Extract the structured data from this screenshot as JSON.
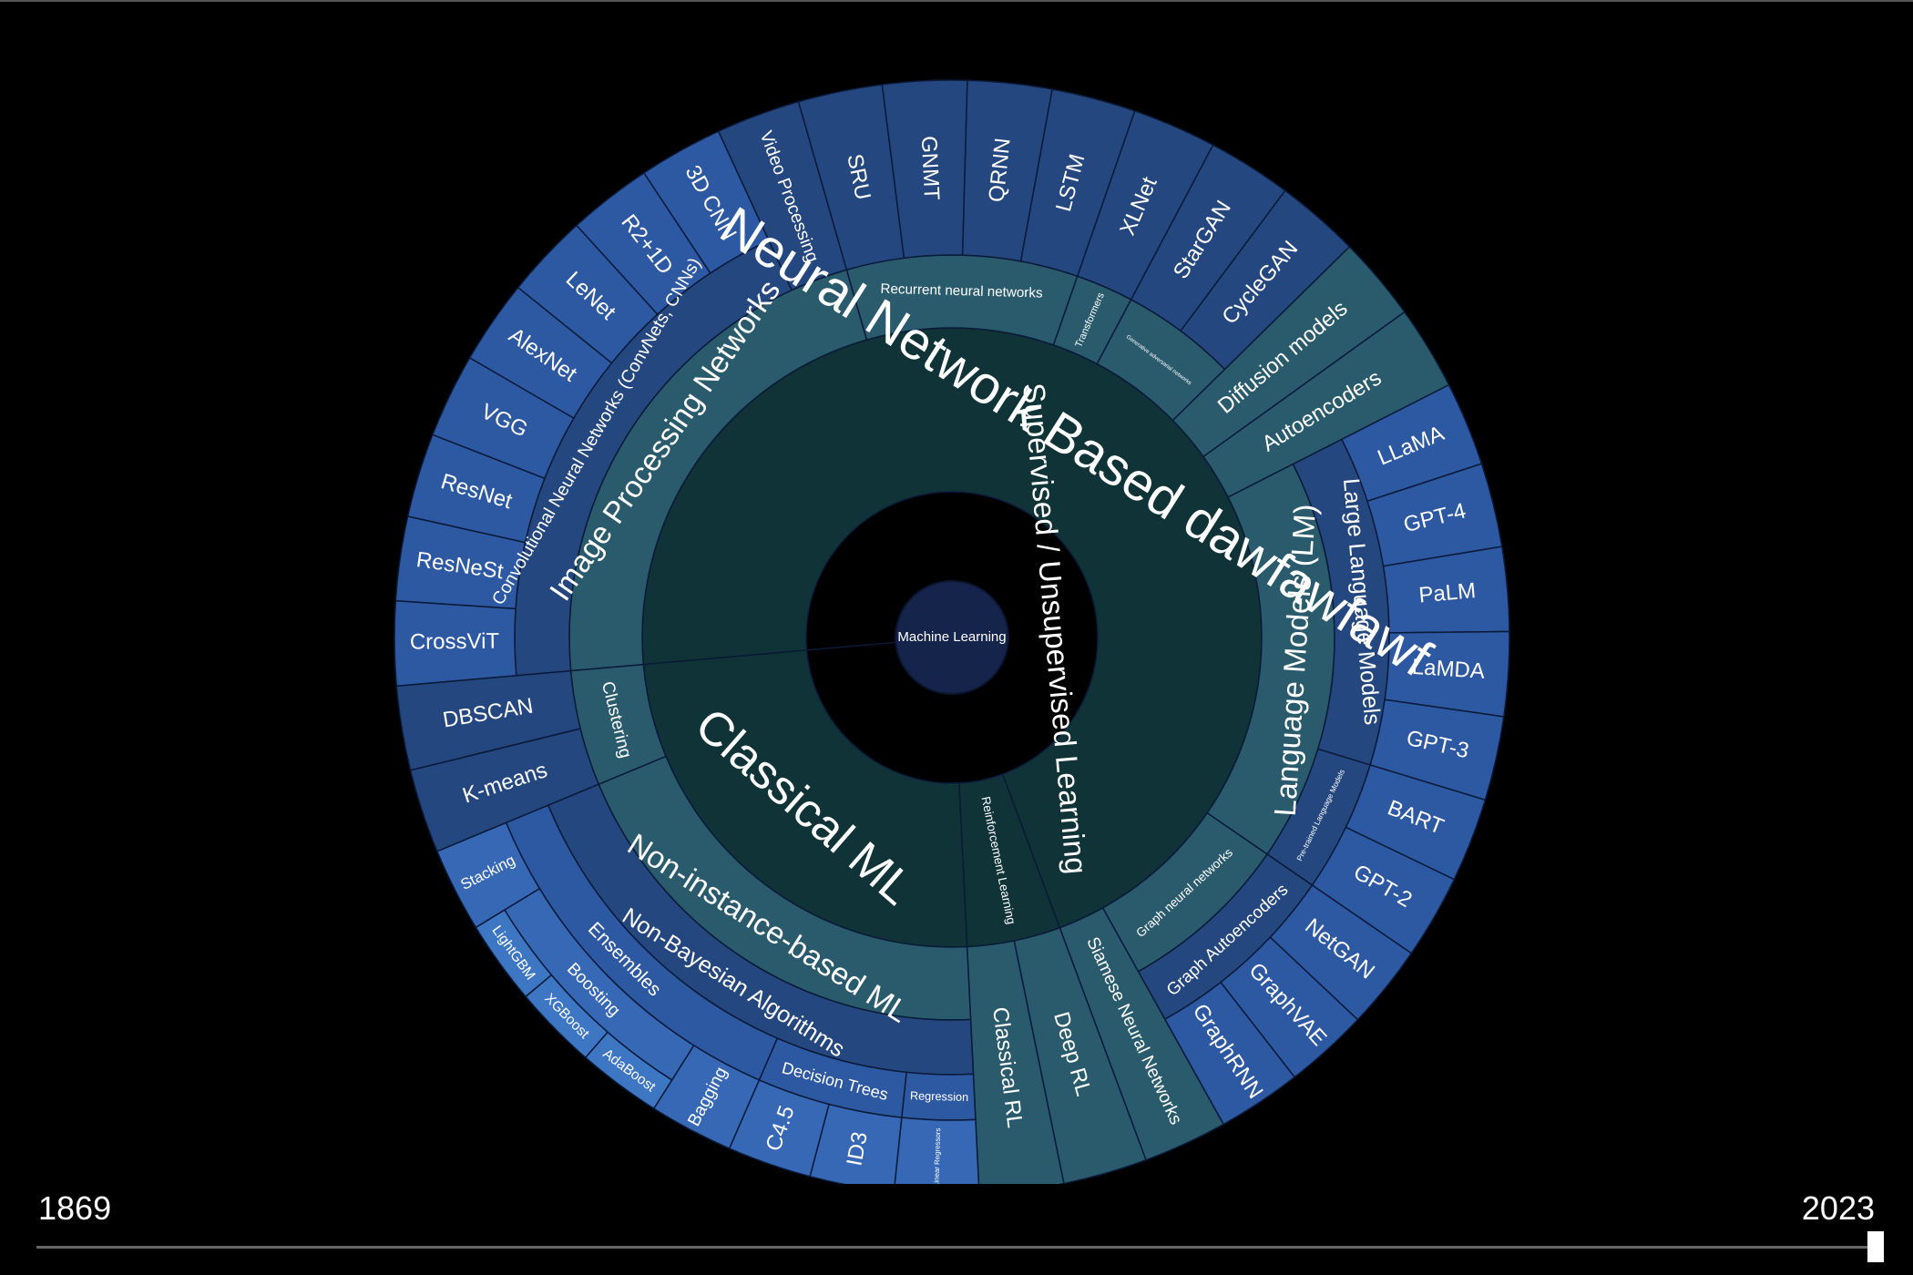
{
  "tree": {
    "label": "Machine Learning",
    "children": [
      {
        "label": "Supervised / Unsupervised Learning",
        "children": [
          {
            "label": "Neural Network Based dawfawfawf",
            "children": [
              {
                "label": "Image Processing Networks",
                "children": [
                  {
                    "label": "Convolutional Neural Networks (ConvNets, CNNs)",
                    "children": [
                      {
                        "label": "CrossViT"
                      },
                      {
                        "label": "ResNeSt"
                      },
                      {
                        "label": "ResNet"
                      },
                      {
                        "label": "VGG"
                      },
                      {
                        "label": "AlexNet"
                      },
                      {
                        "label": "LeNet"
                      },
                      {
                        "label": "R2+1D"
                      },
                      {
                        "label": "3D CNN"
                      }
                    ]
                  },
                  {
                    "label": "Video Processing"
                  }
                ]
              },
              {
                "label": "Recurrent neural networks",
                "children": [
                  {
                    "label": "SRU"
                  },
                  {
                    "label": "GNMT"
                  },
                  {
                    "label": "QRNN"
                  },
                  {
                    "label": "LSTM"
                  }
                ]
              },
              {
                "label": "Transformers",
                "children": [
                  {
                    "label": "XLNet"
                  }
                ]
              },
              {
                "label": "Generative adversarial networks",
                "children": [
                  {
                    "label": "StarGAN"
                  },
                  {
                    "label": "CycleGAN"
                  }
                ]
              },
              {
                "label": "Diffusion models"
              },
              {
                "label": "Autoencoders"
              },
              {
                "label": "Language Models (LM)",
                "children": [
                  {
                    "label": "Large Language Models",
                    "children": [
                      {
                        "label": "LLaMA"
                      },
                      {
                        "label": "GPT-4"
                      },
                      {
                        "label": "PaLM"
                      },
                      {
                        "label": "LaMDA"
                      },
                      {
                        "label": "GPT-3"
                      }
                    ]
                  },
                  {
                    "label": "Pre-trained Language Models",
                    "children": [
                      {
                        "label": "BART"
                      },
                      {
                        "label": "GPT-2"
                      }
                    ]
                  }
                ]
              },
              {
                "label": "Graph neural networks",
                "children": [
                  {
                    "label": "Graph Autoencoders",
                    "children": [
                      {
                        "label": "NetGAN"
                      },
                      {
                        "label": "GraphVAE"
                      },
                      {
                        "label": "GraphRNN"
                      }
                    ]
                  }
                ]
              },
              {
                "label": "Siamese Neural Networks"
              }
            ]
          },
          {
            "label": "Reinforcement Learning",
            "children": [
              {
                "label": "Deep RL"
              },
              {
                "label": "Classical RL"
              }
            ]
          },
          {
            "label": "Classical ML",
            "children": [
              {
                "label": "Non-instance-based ML",
                "children": [
                  {
                    "label": "Non-Bayesian Algorithms",
                    "children": [
                      {
                        "label": "Regression",
                        "children": [
                          {
                            "label": "Linear Regressors"
                          }
                        ]
                      },
                      {
                        "label": "Decision Trees",
                        "children": [
                          {
                            "label": "ID3"
                          },
                          {
                            "label": "C4.5"
                          }
                        ]
                      },
                      {
                        "label": "Ensembles",
                        "children": [
                          {
                            "label": "Bagging"
                          },
                          {
                            "label": "Boosting",
                            "children": [
                              {
                                "label": "AdaBoost"
                              },
                              {
                                "label": "XGBoost"
                              },
                              {
                                "label": "LightGBM"
                              }
                            ]
                          },
                          {
                            "label": "Stacking"
                          }
                        ]
                      }
                    ]
                  }
                ]
              },
              {
                "label": "Clustering",
                "children": [
                  {
                    "label": "K-means"
                  },
                  {
                    "label": "DBSCAN"
                  }
                ]
              }
            ]
          }
        ]
      }
    ]
  },
  "timeline": {
    "start": "1869",
    "end": "2023"
  }
}
